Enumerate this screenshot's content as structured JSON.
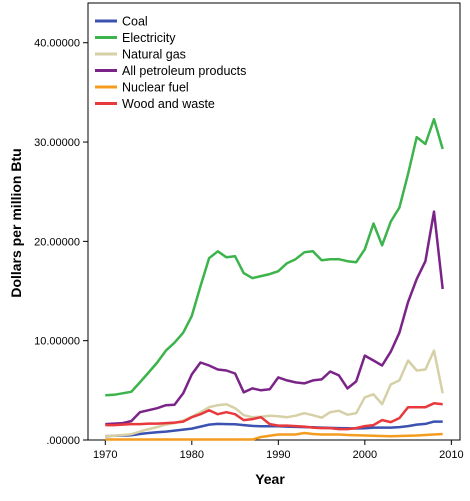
{
  "chart_data": {
    "type": "line",
    "title": "",
    "xlabel": "Year",
    "ylabel": "Dollars per million Btu",
    "xlim": [
      1968,
      2011
    ],
    "ylim": [
      0,
      44
    ],
    "x_ticks": [
      1970,
      1980,
      1990,
      2000,
      2010
    ],
    "y_ticks": [
      0,
      10,
      20,
      30,
      40
    ],
    "y_tick_labels": [
      ".00000",
      "10.00000",
      "20.00000",
      "30.00000",
      "40.00000"
    ],
    "grid": false,
    "legend_position": "top-left",
    "x": [
      1970,
      1971,
      1972,
      1973,
      1974,
      1975,
      1976,
      1977,
      1978,
      1979,
      1980,
      1981,
      1982,
      1983,
      1984,
      1985,
      1986,
      1987,
      1988,
      1989,
      1990,
      1991,
      1992,
      1993,
      1994,
      1995,
      1996,
      1997,
      1998,
      1999,
      2000,
      2001,
      2002,
      2003,
      2004,
      2005,
      2006,
      2007,
      2008,
      2009
    ],
    "series": [
      {
        "name": "Coal",
        "color": "#3b52b0",
        "values": [
          0.38,
          0.42,
          0.45,
          0.48,
          0.6,
          0.7,
          0.78,
          0.85,
          0.95,
          1.05,
          1.15,
          1.35,
          1.55,
          1.62,
          1.6,
          1.58,
          1.5,
          1.42,
          1.38,
          1.38,
          1.38,
          1.35,
          1.32,
          1.3,
          1.28,
          1.25,
          1.22,
          1.2,
          1.18,
          1.16,
          1.18,
          1.25,
          1.25,
          1.25,
          1.3,
          1.4,
          1.55,
          1.62,
          1.85,
          1.85
        ]
      },
      {
        "name": "Electricity",
        "color": "#3cb44b",
        "values": [
          4.5,
          4.55,
          4.7,
          4.85,
          5.8,
          6.8,
          7.8,
          9.0,
          9.8,
          10.8,
          12.5,
          15.5,
          18.3,
          19.0,
          18.4,
          18.5,
          16.8,
          16.3,
          16.5,
          16.7,
          17.0,
          17.8,
          18.2,
          18.9,
          19.0,
          18.1,
          18.2,
          18.2,
          18.0,
          17.9,
          19.2,
          21.8,
          19.6,
          22.0,
          23.4,
          26.8,
          30.5,
          29.8,
          32.3,
          29.3
        ]
      },
      {
        "name": "Natural gas",
        "color": "#d6d0a6",
        "values": [
          0.4,
          0.42,
          0.5,
          0.58,
          0.85,
          1.1,
          1.3,
          1.55,
          1.7,
          1.95,
          2.35,
          2.8,
          3.3,
          3.5,
          3.6,
          3.2,
          2.5,
          2.3,
          2.35,
          2.45,
          2.4,
          2.3,
          2.45,
          2.7,
          2.5,
          2.25,
          2.8,
          2.95,
          2.55,
          2.7,
          4.3,
          4.6,
          3.6,
          5.6,
          6.0,
          8.0,
          7.0,
          7.1,
          9.0,
          4.7
        ]
      },
      {
        "name": "All petroleum products",
        "color": "#7b2488",
        "values": [
          1.6,
          1.65,
          1.7,
          1.9,
          2.8,
          3.0,
          3.2,
          3.5,
          3.55,
          4.7,
          6.6,
          7.8,
          7.5,
          7.1,
          7.0,
          6.7,
          4.8,
          5.2,
          5.0,
          5.1,
          6.3,
          6.0,
          5.8,
          5.7,
          6.0,
          6.1,
          6.9,
          6.5,
          5.2,
          5.9,
          8.5,
          8.0,
          7.5,
          8.9,
          10.8,
          13.9,
          16.2,
          18.0,
          23.0,
          15.2
        ]
      },
      {
        "name": "Nuclear fuel",
        "color": "#f39c1f",
        "values": [
          0.05,
          0.05,
          0.05,
          0.05,
          0.05,
          0.05,
          0.05,
          0.05,
          0.05,
          0.05,
          0.05,
          0.05,
          0.05,
          0.05,
          0.05,
          0.05,
          0.05,
          0.05,
          0.3,
          0.42,
          0.55,
          0.55,
          0.55,
          0.7,
          0.6,
          0.55,
          0.55,
          0.55,
          0.5,
          0.48,
          0.45,
          0.42,
          0.4,
          0.38,
          0.4,
          0.42,
          0.45,
          0.5,
          0.55,
          0.6
        ]
      },
      {
        "name": "Wood and waste",
        "color": "#e8393c",
        "values": [
          1.5,
          1.5,
          1.55,
          1.6,
          1.6,
          1.65,
          1.65,
          1.7,
          1.75,
          1.85,
          2.3,
          2.6,
          3.0,
          2.6,
          2.8,
          2.6,
          2.0,
          2.1,
          2.3,
          1.6,
          1.45,
          1.45,
          1.4,
          1.35,
          1.25,
          1.2,
          1.2,
          1.1,
          1.1,
          1.2,
          1.4,
          1.5,
          2.0,
          1.8,
          2.2,
          3.3,
          3.3,
          3.3,
          3.7,
          3.6
        ]
      }
    ]
  }
}
